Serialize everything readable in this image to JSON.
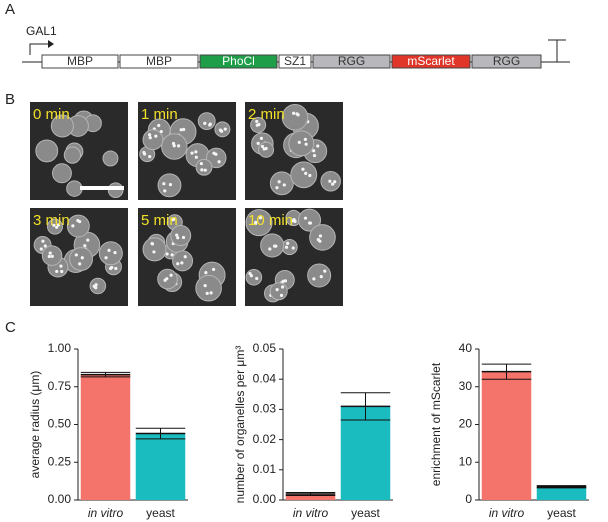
{
  "panel_labels": [
    "A",
    "B",
    "C"
  ],
  "construct": {
    "promoter": "GAL1",
    "parts": [
      {
        "label": "MBP",
        "color": "#ffffff"
      },
      {
        "label": "MBP",
        "color": "#ffffff"
      },
      {
        "label": "PhoCl",
        "color": "#1f9e4a"
      },
      {
        "label": "SZ1",
        "color": "#ffffff"
      },
      {
        "label": "RGG",
        "color": "#b8b8bc"
      },
      {
        "label": "mScarlet",
        "color": "#e0362a"
      },
      {
        "label": "RGG",
        "color": "#b8b8bc"
      }
    ]
  },
  "timepoints": [
    "0 min",
    "1 min",
    "2 min",
    "3 min",
    "5 min",
    "10 min"
  ],
  "chart_data": [
    {
      "type": "bar",
      "y_label": "average radius (μm)",
      "categories": [
        "in vitro",
        "yeast"
      ],
      "values": [
        0.83,
        0.44
      ],
      "errors": [
        0.015,
        0.035
      ],
      "colors": [
        "#f4736b",
        "#1bbcc0"
      ],
      "ylim": [
        0,
        1
      ],
      "yticks": [
        {
          "value": 0,
          "label": "0.00"
        },
        {
          "value": 0.25,
          "label": "0.25"
        },
        {
          "value": 0.5,
          "label": "0.50"
        },
        {
          "value": 0.75,
          "label": "0.75"
        },
        {
          "value": 1,
          "label": "1.00"
        }
      ]
    },
    {
      "type": "bar",
      "y_label": "number of organelles per μm³",
      "categories": [
        "in vitro",
        "yeast"
      ],
      "values": [
        0.002,
        0.031
      ],
      "errors": [
        0.0005,
        0.0045
      ],
      "colors": [
        "#f4736b",
        "#1bbcc0"
      ],
      "ylim": [
        0,
        0.05
      ],
      "yticks": [
        {
          "value": 0,
          "label": "0.00"
        },
        0.01,
        0.02,
        0.03,
        0.04,
        0.05
      ]
    },
    {
      "type": "bar",
      "y_label": "enrichment of mScarlet",
      "categories": [
        "in vitro",
        "yeast"
      ],
      "values": [
        34,
        3.5
      ],
      "errors": [
        2,
        0.3
      ],
      "colors": [
        "#f4736b",
        "#1bbcc0"
      ],
      "ylim": [
        0,
        40
      ],
      "yticks": [
        0,
        10,
        20,
        30,
        40
      ]
    }
  ]
}
